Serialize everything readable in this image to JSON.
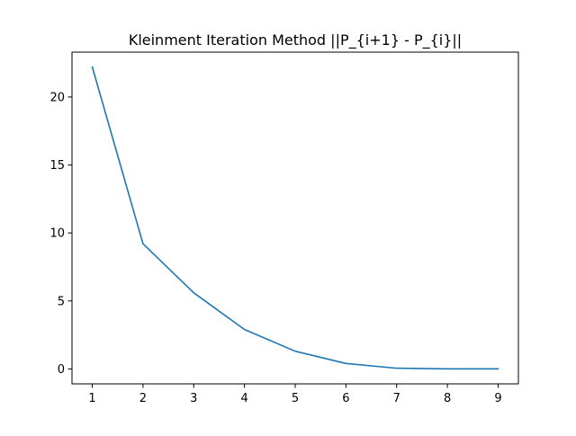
{
  "chart_data": {
    "type": "line",
    "title": "Kleinment Iteration Method ||P_{i+1} - P_{i}||",
    "xlabel": "",
    "ylabel": "",
    "x": [
      1,
      2,
      3,
      4,
      5,
      6,
      7,
      8,
      9
    ],
    "series": [
      {
        "values": [
          22.2,
          9.2,
          5.6,
          2.9,
          1.3,
          0.4,
          0.05,
          0.0,
          0.0
        ],
        "color": "#1f77b4"
      }
    ],
    "xlim": [
      0.6,
      9.4
    ],
    "ylim": [
      -1.1,
      23.3
    ],
    "xticks": [
      1,
      2,
      3,
      4,
      5,
      6,
      7,
      8,
      9
    ],
    "yticks": [
      0,
      5,
      10,
      15,
      20
    ],
    "grid": false,
    "legend": "none"
  }
}
